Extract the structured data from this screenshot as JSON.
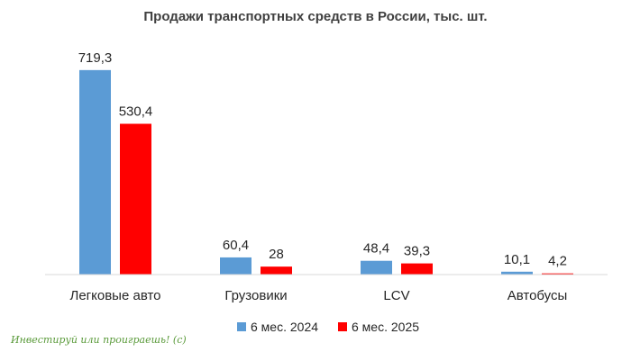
{
  "chart_data": {
    "type": "bar",
    "title": "Продажи транспортных средств в России, тыс. шт.",
    "categories": [
      "Легковые авто",
      "Грузовики",
      "LCV",
      "Автобусы"
    ],
    "series": [
      {
        "name": "6 мес. 2024",
        "color": "#5b9bd5",
        "values": [
          719.3,
          60.4,
          48.4,
          10.1
        ],
        "labels": [
          "719,3",
          "60,4",
          "48,4",
          "10,1"
        ]
      },
      {
        "name": "6 мес. 2025",
        "color": "#ff0000",
        "values": [
          530.4,
          28,
          39.3,
          4.2
        ],
        "labels": [
          "530,4",
          "28",
          "39,3",
          "4,2"
        ]
      }
    ],
    "ylim": [
      0,
      760
    ],
    "grid": false,
    "legend_position": "bottom"
  },
  "watermark": "Инвестируй или проиграешь! (с)"
}
